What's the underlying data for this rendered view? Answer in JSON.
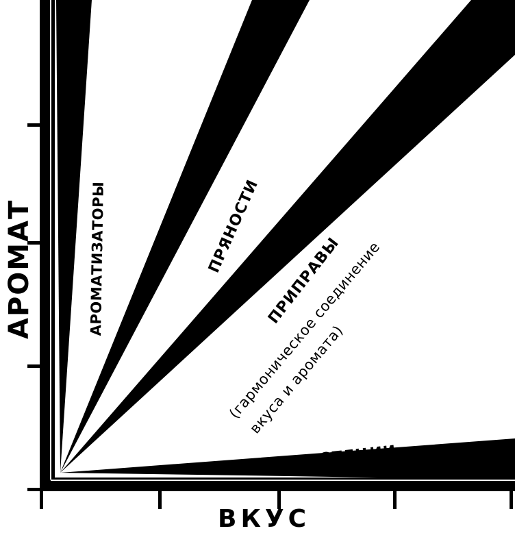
{
  "axes": {
    "y_label": "АРОМАТ",
    "x_label": "ВКУС"
  },
  "regions": {
    "aromatizatory": "АРОМАТИЗАТОРЫ",
    "pryanosti": "ПРЯНОСТИ",
    "pripravy": "ПРИПРАВЫ",
    "pripravy_note_line1": "(гармоническое соединение",
    "pripravy_note_line2": "вкуса и аромата)",
    "specii": "СПЕЦИИ"
  },
  "colors": {
    "ink": "#000000",
    "paper": "#ffffff"
  }
}
